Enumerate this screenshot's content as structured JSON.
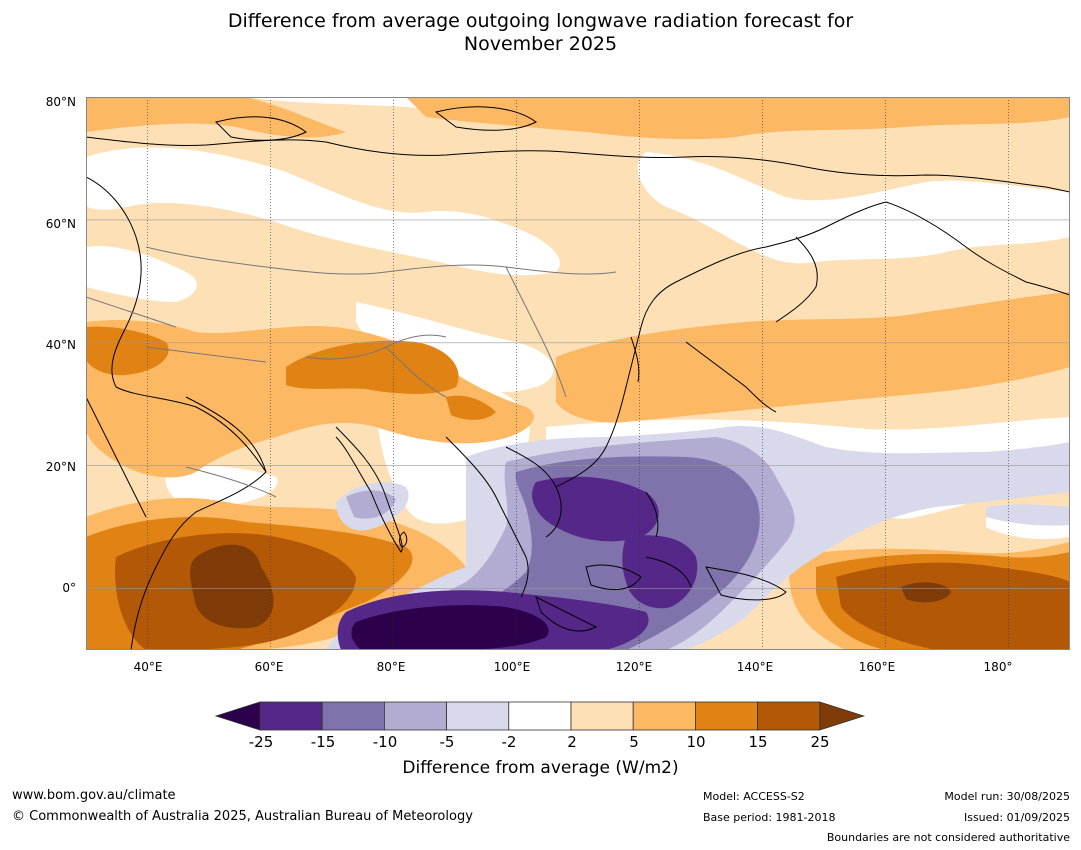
{
  "title_line1": "Difference from average outgoing longwave radiation forecast for",
  "title_line2": "November 2025",
  "lat_labels": [
    "80°N",
    "60°N",
    "40°N",
    "20°N",
    "0°"
  ],
  "lon_labels": [
    "40°E",
    "60°E",
    "80°E",
    "100°E",
    "120°E",
    "140°E",
    "160°E",
    "180°"
  ],
  "colorbar": {
    "ticks": [
      "-25",
      "-15",
      "-10",
      "-5",
      "-2",
      "2",
      "5",
      "10",
      "15",
      "25"
    ],
    "colors": [
      "#2d004b",
      "#542788",
      "#8073ac",
      "#b2abd2",
      "#d8daeb",
      "#ffffff",
      "#fee0b6",
      "#fdb863",
      "#e08214",
      "#b35806",
      "#7f3b08"
    ],
    "label": "Difference from average (W/m2)"
  },
  "footer": {
    "website": "www.bom.gov.au/climate",
    "copyright": "© Commonwealth of Australia 2025, Australian Bureau of Meteorology",
    "model": "Model: ACCESS-S2",
    "base_period": "Base period: 1981-2018",
    "model_run": "Model run: 30/08/2025",
    "issued": "Issued: 01/09/2025",
    "disclaimer": "Boundaries are not considered authoritative"
  },
  "map": {
    "lon_range": [
      30,
      190
    ],
    "lat_range": [
      -10,
      80
    ],
    "grid_lats": [
      80,
      60,
      40,
      20,
      0
    ],
    "grid_lons": [
      40,
      60,
      80,
      100,
      120,
      140,
      160,
      180
    ]
  }
}
